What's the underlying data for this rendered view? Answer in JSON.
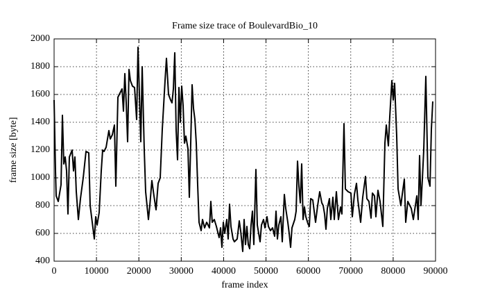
{
  "chart_data": {
    "type": "line",
    "title": "Frame size trace of BoulevardBio_10",
    "x_label": "frame index",
    "y_label": "frame size [byte]",
    "x": [
      0,
      327,
      491,
      982,
      1636,
      1964,
      2291,
      2618,
      2945,
      3273,
      3600,
      4255,
      4582,
      4909,
      5236,
      5727,
      6218,
      6873,
      7527,
      8182,
      8509,
      9164,
      9491,
      9818,
      10145,
      10636,
      11127,
      11455,
      11782,
      12273,
      12927,
      13255,
      13745,
      14236,
      14564,
      15055,
      15709,
      16036,
      16364,
      16691,
      17018,
      17345,
      17673,
      18000,
      18491,
      18982,
      19473,
      19800,
      20127,
      20455,
      20782,
      21273,
      21600,
      22255,
      22582,
      23073,
      23564,
      24055,
      24545,
      25036,
      25527,
      26182,
      26509,
      27000,
      27491,
      27818,
      28145,
      28473,
      28800,
      29127,
      29455,
      29782,
      30109,
      30436,
      30764,
      31091,
      31582,
      31909,
      32236,
      32564,
      32891,
      33218,
      33545,
      33873,
      34200,
      34691,
      35018,
      35509,
      36000,
      36327,
      36655,
      36982,
      37309,
      37800,
      38291,
      38945,
      39273,
      39600,
      39927,
      40255,
      40745,
      41073,
      41400,
      41727,
      42218,
      42545,
      43200,
      43691,
      44018,
      44509,
      44836,
      45164,
      45491,
      45818,
      46145,
      46473,
      46800,
      47127,
      47618,
      47945,
      48273,
      48600,
      48927,
      49418,
      49745,
      50236,
      50564,
      51055,
      51545,
      52036,
      52364,
      52691,
      53018,
      53509,
      53836,
      54327,
      54655,
      55145,
      55473,
      55800,
      56127,
      56782,
      57109,
      57436,
      57764,
      58091,
      58418,
      58745,
      59073,
      59400,
      59891,
      60218,
      60545,
      61036,
      61364,
      61691,
      62182,
      62673,
      63164,
      63491,
      63818,
      64145,
      64473,
      64964,
      65291,
      65782,
      66109,
      66600,
      67091,
      67582,
      67909,
      68400,
      68727,
      69382,
      70036,
      70364,
      70855,
      71345,
      71673,
      72327,
      72818,
      73473,
      73800,
      74291,
      74782,
      75109,
      75600,
      75927,
      76418,
      76909,
      77564,
      78055,
      78382,
      78873,
      79200,
      79691,
      80018,
      80345,
      80836,
      81164,
      81818,
      82145,
      82636,
      82964,
      83455,
      83945,
      84273,
      84764,
      85091,
      85582,
      85909,
      86236,
      86564,
      86891,
      87218,
      87709,
      88200,
      88691,
      89018,
      89345
    ],
    "series": [
      {
        "color": "#000000",
        "values": [
          1560,
          1050,
          870,
          830,
          950,
          1450,
          1100,
          1150,
          1050,
          740,
          1150,
          1200,
          1050,
          1150,
          900,
          700,
          850,
          1000,
          1190,
          1180,
          800,
          640,
          560,
          720,
          660,
          750,
          1050,
          1200,
          1190,
          1220,
          1340,
          1280,
          1310,
          1380,
          940,
          1580,
          1620,
          1640,
          1480,
          1750,
          1540,
          1260,
          1780,
          1700,
          1660,
          1650,
          1420,
          1940,
          1600,
          1260,
          1800,
          1200,
          900,
          700,
          800,
          980,
          870,
          770,
          960,
          1000,
          1350,
          1700,
          1860,
          1600,
          1560,
          1540,
          1640,
          1900,
          1340,
          1130,
          1650,
          1400,
          1660,
          1520,
          1250,
          1300,
          1210,
          860,
          1250,
          1670,
          1500,
          1420,
          1250,
          950,
          680,
          620,
          700,
          640,
          680,
          660,
          640,
          830,
          680,
          700,
          650,
          570,
          640,
          500,
          680,
          600,
          700,
          560,
          810,
          650,
          560,
          540,
          560,
          690,
          620,
          470,
          700,
          520,
          650,
          520,
          490,
          660,
          760,
          520,
          1060,
          660,
          600,
          540,
          660,
          700,
          640,
          720,
          650,
          620,
          640,
          580,
          760,
          560,
          660,
          720,
          540,
          880,
          780,
          680,
          600,
          500,
          640,
          700,
          760,
          1120,
          940,
          820,
          1100,
          700,
          790,
          720,
          670,
          650,
          850,
          840,
          760,
          680,
          800,
          900,
          820,
          800,
          740,
          630,
          780,
          850,
          700,
          860,
          700,
          900,
          700,
          790,
          740,
          1390,
          920,
          900,
          890,
          720,
          880,
          960,
          840,
          680,
          860,
          1010,
          850,
          830,
          710,
          890,
          870,
          720,
          910,
          830,
          650,
          1250,
          1380,
          1230,
          1440,
          1700,
          1560,
          1680,
          1300,
          920,
          800,
          880,
          990,
          680,
          830,
          800,
          780,
          700,
          770,
          870,
          700,
          1160,
          800,
          990,
          1200,
          1730,
          1000,
          940,
          1350,
          1550
        ]
      }
    ],
    "xlim": [
      0,
      90000
    ],
    "xticks": [
      0,
      10000,
      20000,
      30000,
      40000,
      50000,
      60000,
      70000,
      80000,
      90000
    ],
    "ylim": [
      400,
      2000
    ],
    "yticks": [
      400,
      600,
      800,
      1000,
      1200,
      1400,
      1600,
      1800,
      2000
    ],
    "grid": true
  }
}
